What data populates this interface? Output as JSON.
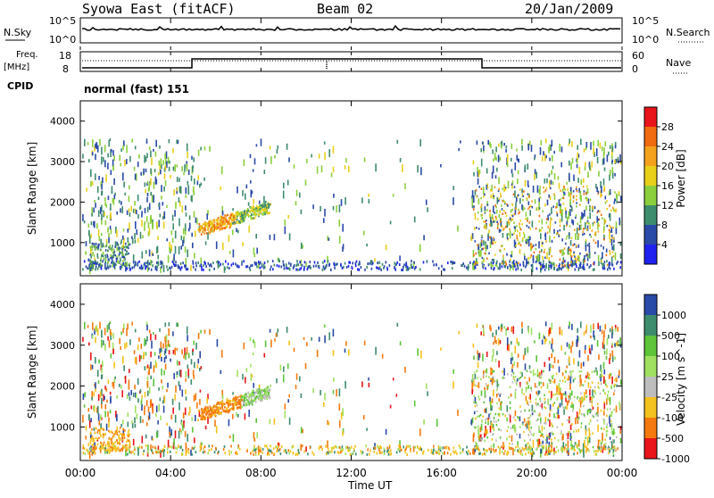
{
  "header": {
    "station": "Syowa East (fitACF)",
    "beam": "Beam 02",
    "date": "20/Jan/2009"
  },
  "noise_panel": {
    "left_label": "N.Sky",
    "right_label": "N.Search",
    "tick_top": "10^5",
    "tick_bottom": "10^0",
    "right_tick_top": "10^5",
    "right_tick_bottom": "10^0"
  },
  "freq_panel": {
    "left_label_1": "Freq.",
    "left_label_2": "[MHz]",
    "right_label": "Nave",
    "ticks_left": [
      "18",
      "8"
    ],
    "ticks_right": [
      "60",
      "0"
    ]
  },
  "cpid": {
    "label": "CPID",
    "value": "normal (fast) 151"
  },
  "chart_data": [
    {
      "type": "heatmap",
      "name": "Power",
      "ylabel": "Slant Range [km]",
      "yticks": [
        "4000",
        "3000",
        "2000",
        "1000"
      ],
      "ylim": [
        180,
        4500
      ],
      "colorbar": {
        "label": "Power [dB]",
        "ticks": [
          "28",
          "24",
          "20",
          "16",
          "12",
          "8",
          "4"
        ],
        "colors": [
          "#e8141a",
          "#f06a10",
          "#f4a21e",
          "#e8cf1a",
          "#8ccf3c",
          "#3e8c6e",
          "#2a4aa8",
          "#1f22ee"
        ]
      }
    },
    {
      "type": "heatmap",
      "name": "Velocity",
      "ylabel": "Slant Range [km]",
      "yticks": [
        "4000",
        "3000",
        "2000",
        "1000"
      ],
      "ylim": [
        180,
        4500
      ],
      "colorbar": {
        "label": "Velocity [m s^-1]",
        "ticks": [
          "1000",
          "500",
          "100",
          "25",
          "-25",
          "-100",
          "-500",
          "-1000"
        ],
        "colors": [
          "#2a4aa8",
          "#3e8c6e",
          "#5ec43a",
          "#9fe060",
          "#bdbdbd",
          "#f4c21e",
          "#f47a10",
          "#e8141a"
        ]
      }
    }
  ],
  "xaxis": {
    "label": "Time UT",
    "ticks": [
      "00:00",
      "04:00",
      "08:00",
      "12:00",
      "16:00",
      "20:00",
      "00:00"
    ]
  }
}
